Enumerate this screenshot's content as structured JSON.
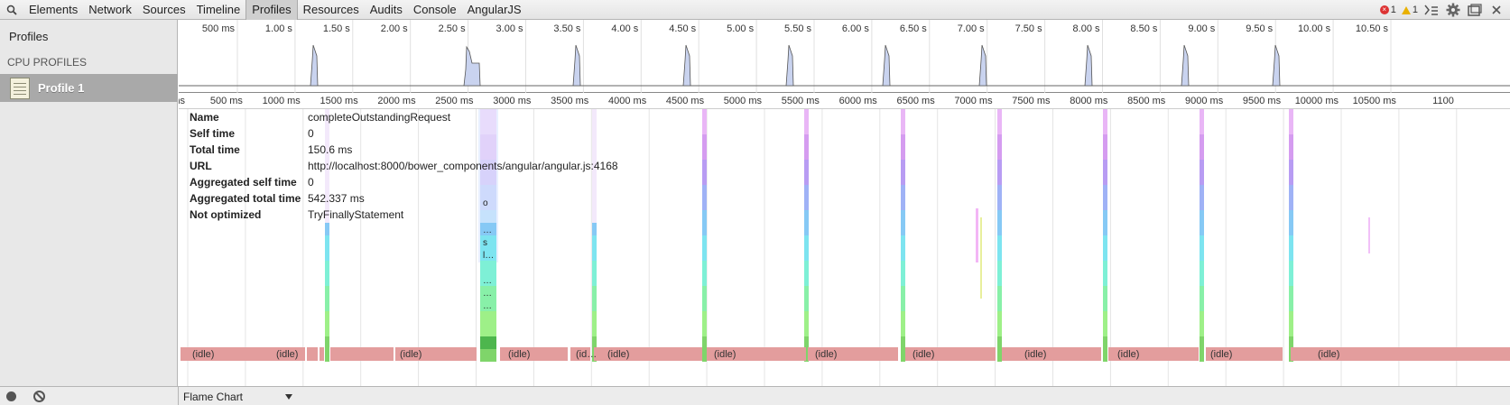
{
  "toolbar": {
    "tabs": [
      "Elements",
      "Network",
      "Sources",
      "Timeline",
      "Profiles",
      "Resources",
      "Audits",
      "Console",
      "AngularJS"
    ],
    "active_tab": "Profiles",
    "error_count": "1",
    "warning_count": "1"
  },
  "sidebar": {
    "title": "Profiles",
    "section": "CPU PROFILES",
    "item": "Profile 1"
  },
  "overview": {
    "ticks": [
      "500 ms",
      "1.00 s",
      "1.50 s",
      "2.00 s",
      "2.50 s",
      "3.00 s",
      "3.50 s",
      "4.00 s",
      "4.50 s",
      "5.00 s",
      "5.50 s",
      "6.00 s",
      "6.50 s",
      "7.00 s",
      "7.50 s",
      "8.00 s",
      "8.50 s",
      "9.00 s",
      "9.50 s",
      "10.00 s",
      "10.50 s"
    ]
  },
  "ruler": {
    "ticks": [
      "ms",
      "500 ms",
      "1000 ms",
      "1500 ms",
      "2000 ms",
      "2500 ms",
      "3000 ms",
      "3500 ms",
      "4000 ms",
      "4500 ms",
      "5000 ms",
      "5500 ms",
      "6000 ms",
      "6500 ms",
      "7000 ms",
      "7500 ms",
      "8000 ms",
      "8500 ms",
      "9000 ms",
      "9500 ms",
      "10000 ms",
      "10500 ms",
      "1100"
    ]
  },
  "details": [
    {
      "key": "Name",
      "value": "completeOutstandingRequest"
    },
    {
      "key": "Self time",
      "value": "0"
    },
    {
      "key": "Total time",
      "value": "150.6 ms"
    },
    {
      "key": "URL",
      "value": "http://localhost:8000/bower_components/angular/angular.js:4168"
    },
    {
      "key": "Aggregated self time",
      "value": "0"
    },
    {
      "key": "Aggregated total time",
      "value": "542.337 ms"
    },
    {
      "key": "Not optimized",
      "value": "TryFinallyStatement"
    }
  ],
  "idle_labels": [
    "(idle)",
    "(idle)",
    "(idle)",
    "(idle)",
    "(id…",
    "(idle)",
    "(idle)",
    "(idle)",
    "(idle)",
    "(idle)",
    "(idle)",
    "(idle)",
    "(idle)"
  ],
  "frame_labels": [
    "…",
    "s",
    "l…",
    "…",
    "…",
    "…",
    "o"
  ],
  "bottombar": {
    "view_mode": "Flame Chart"
  },
  "colors": {
    "idle": "#e39d9d",
    "selection": "#e9f0ff",
    "overview_fill": "#c9d3ef"
  }
}
